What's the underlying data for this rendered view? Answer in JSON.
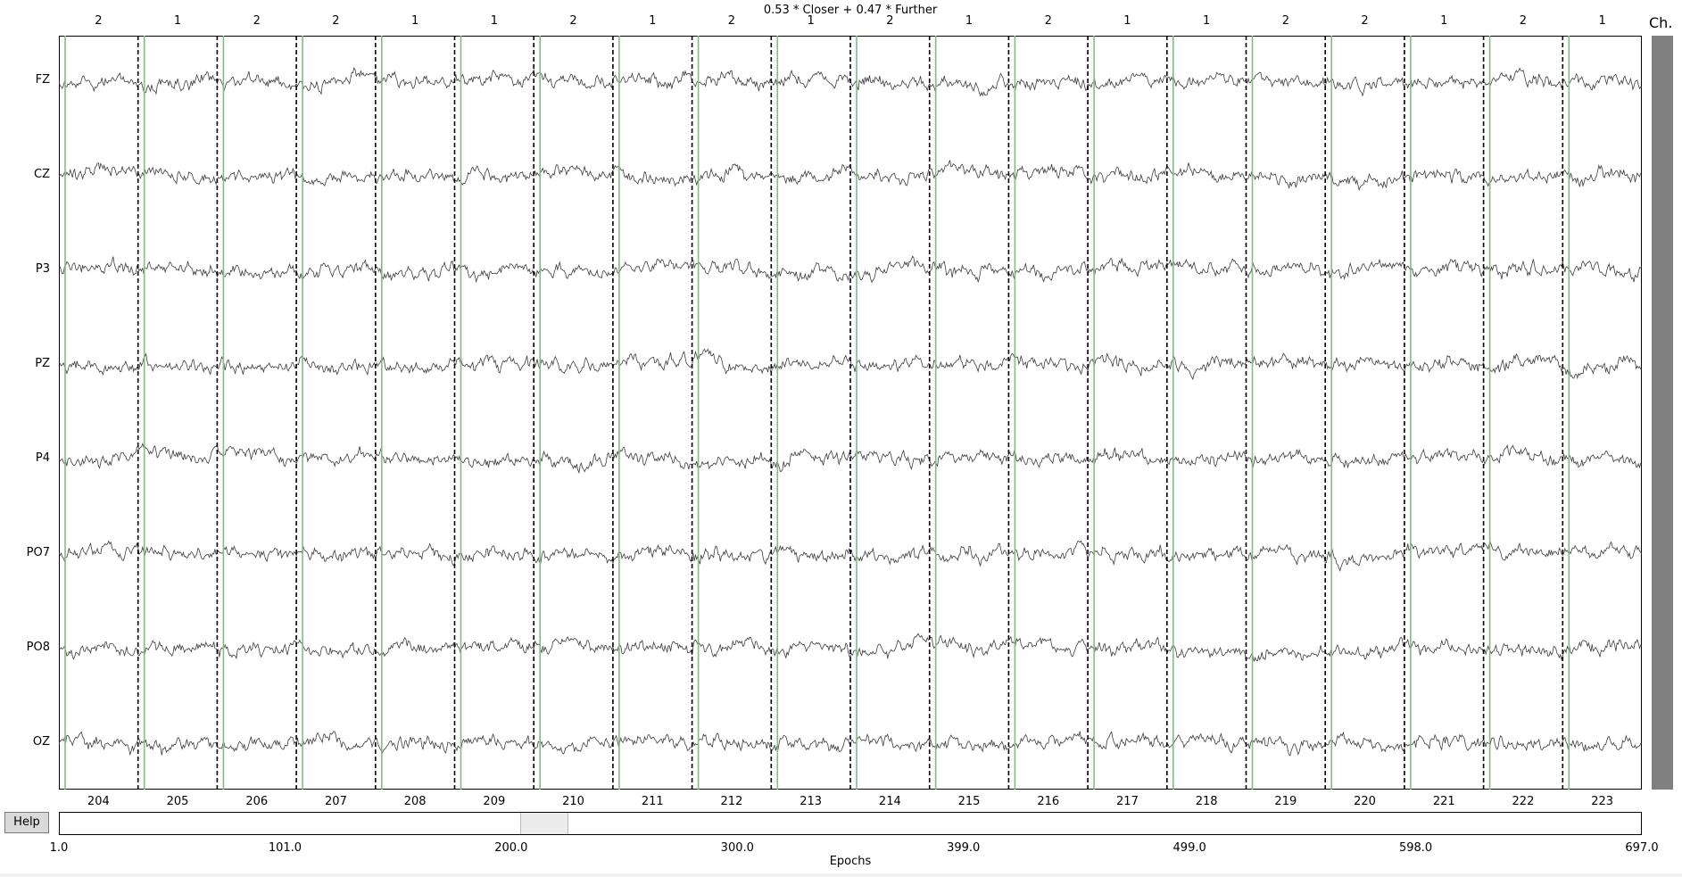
{
  "title": "0.53 * Closer + 0.47 * Further",
  "channels": [
    "FZ",
    "CZ",
    "P3",
    "PZ",
    "P4",
    "PO7",
    "PO8",
    "OZ"
  ],
  "epochs": [
    "204",
    "205",
    "206",
    "207",
    "208",
    "209",
    "210",
    "211",
    "212",
    "213",
    "214",
    "215",
    "216",
    "217",
    "218",
    "219",
    "220",
    "221",
    "222",
    "223"
  ],
  "event_ids": [
    "2",
    "1",
    "2",
    "2",
    "1",
    "1",
    "2",
    "1",
    "2",
    "1",
    "2",
    "1",
    "2",
    "1",
    "1",
    "2",
    "2",
    "1",
    "2",
    "1"
  ],
  "channel_scrollbar_label": "Ch.",
  "help_label": "Help",
  "epoch_scrollbar": {
    "ticks": [
      "1.0",
      "101.0",
      "200.0",
      "300.0",
      "399.0",
      "499.0",
      "598.0",
      "697.0"
    ],
    "xlabel": "Epochs",
    "range": [
      1,
      697
    ],
    "visible_window": [
      204,
      223
    ]
  },
  "colors": {
    "trace": "#3c3c3c",
    "epoch_boundary": "#000000",
    "event_marker": "#7fbf7f",
    "channel_scrollbar": "#808080"
  }
}
